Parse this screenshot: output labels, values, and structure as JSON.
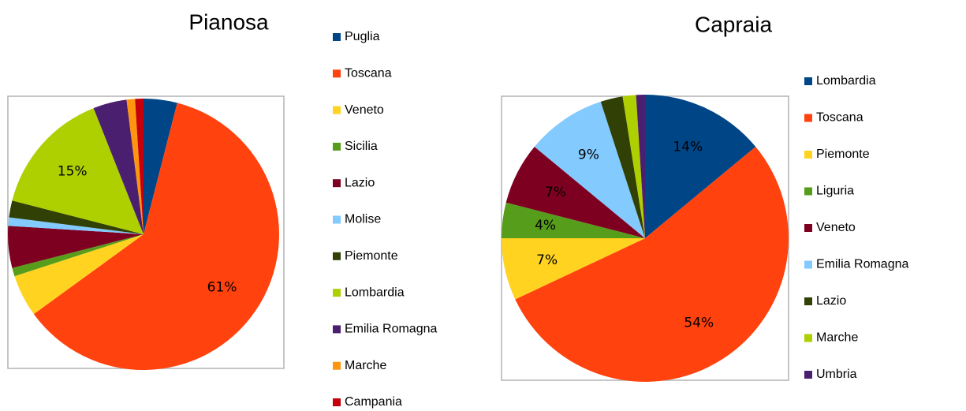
{
  "chart_data": [
    {
      "type": "pie",
      "title": "Pianosa",
      "categories": [
        "Puglia",
        "Toscana",
        "Veneto",
        "Sicilia",
        "Lazio",
        "Molise",
        "Piemonte",
        "Lombardia",
        "Emilia Romagna",
        "Marche",
        "Campania"
      ],
      "values": [
        4,
        61,
        5,
        1,
        5,
        1,
        2,
        15,
        4,
        1,
        1
      ],
      "value_labels": [
        null,
        "61%",
        null,
        null,
        null,
        null,
        null,
        "15%",
        null,
        null,
        null
      ],
      "colors": [
        "#004586",
        "#ff420e",
        "#ffd320",
        "#579d1c",
        "#7e0021",
        "#83caff",
        "#314004",
        "#aecf00",
        "#4b1f6f",
        "#ff950e",
        "#c5000b"
      ]
    },
    {
      "type": "pie",
      "title": "Capraia",
      "categories": [
        "Lombardia",
        "Toscana",
        "Piemonte",
        "Liguria",
        "Veneto",
        "Emilia Romagna",
        "Lazio",
        "Marche",
        "Umbria"
      ],
      "values": [
        14,
        54,
        7,
        4,
        7,
        9,
        2.5,
        1.5,
        1
      ],
      "value_labels": [
        "14%",
        "54%",
        "7%",
        "4%",
        "7%",
        "9%",
        null,
        null,
        null
      ],
      "colors": [
        "#004586",
        "#ff420e",
        "#ffd320",
        "#579d1c",
        "#7e0021",
        "#83caff",
        "#314004",
        "#aecf00",
        "#4b1f6f"
      ]
    }
  ]
}
